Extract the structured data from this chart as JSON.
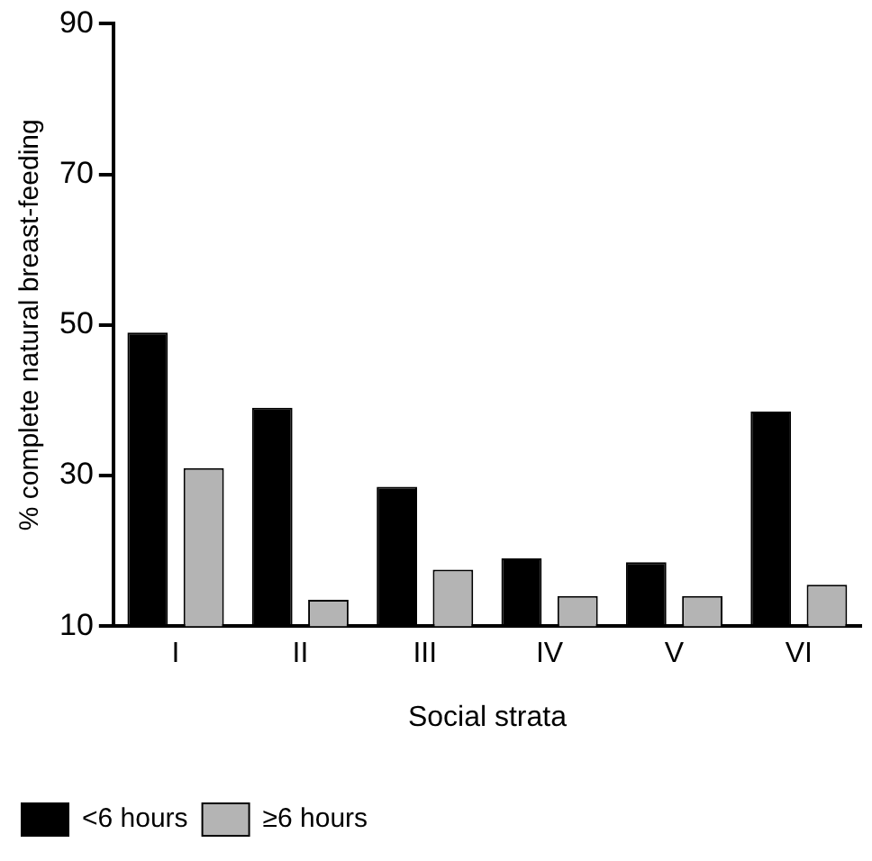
{
  "chart_data": {
    "type": "bar",
    "xlabel": "Social strata",
    "ylabel": "% complete natural breast-feeding",
    "categories": [
      "I",
      "II",
      "III",
      "IV",
      "V",
      "VI"
    ],
    "series": [
      {
        "name": "<6 hours",
        "color": "#000000",
        "values": [
          49,
          39,
          28.5,
          19,
          18.5,
          38.5
        ]
      },
      {
        "name": "≥6 hours",
        "color": "#b4b4b4",
        "values": [
          31,
          13.5,
          17.5,
          14,
          14,
          15.5
        ]
      }
    ],
    "ylim": [
      10,
      90
    ],
    "yticks": [
      10,
      30,
      50,
      70,
      90
    ],
    "grid": false,
    "legend": "bottom left"
  }
}
